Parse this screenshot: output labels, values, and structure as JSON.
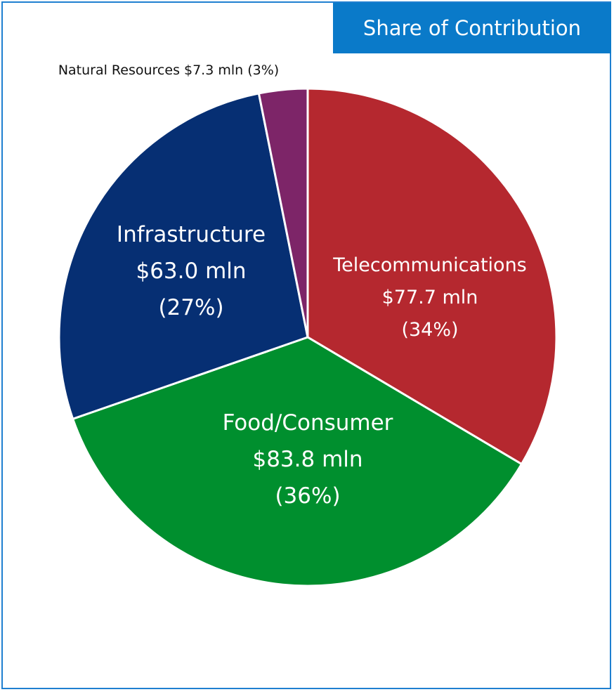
{
  "chart_data": {
    "type": "pie",
    "title": "Share of Contribution",
    "start_angle_deg": 0,
    "direction": "clockwise",
    "slices": [
      {
        "key": "telecom",
        "label": "Telecommunications",
        "value_text": "$77.7 mln",
        "pct_text": "(34%)",
        "value": 77.7,
        "percent": 34,
        "color": "#b5282f",
        "label_placement": "inside"
      },
      {
        "key": "food",
        "label": "Food/Consumer",
        "value_text": "$83.8 mln",
        "pct_text": "(36%)",
        "value": 83.8,
        "percent": 36,
        "color": "#008f2e",
        "label_placement": "inside"
      },
      {
        "key": "infra",
        "label": "Infrastructure",
        "value_text": "$63.0 mln",
        "pct_text": "(27%)",
        "value": 63.0,
        "percent": 27,
        "color": "#062f73",
        "label_placement": "inside"
      },
      {
        "key": "natural",
        "label": "Natural Resources",
        "value_text": "$7.3 mln",
        "pct_text": "(3%)",
        "value": 7.3,
        "percent": 3,
        "color": "#7d2568",
        "label_placement": "outside",
        "outside_text": "Natural Resources $7.3 mln (3%)"
      }
    ]
  },
  "colors": {
    "frame_border": "#1f7fd0",
    "title_badge_bg": "#0a7ac9"
  }
}
